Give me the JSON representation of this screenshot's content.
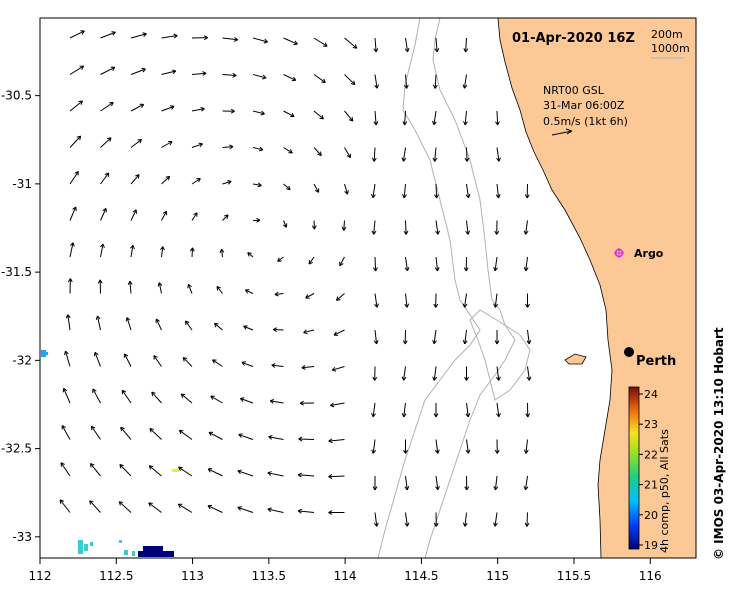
{
  "title": "01-Apr-2020 16Z",
  "depth_legend": [
    "200m",
    "1000m"
  ],
  "velocity_legend": {
    "source": "NRT00 GSL",
    "date": "31-Mar 06:00Z",
    "scale": "0.5m/s (1kt 6h)"
  },
  "colorbar": {
    "label": "4h comp, p50, All Sats",
    "ticks": [
      "19",
      "20",
      "21",
      "22",
      "23",
      "24"
    ]
  },
  "places": [
    {
      "name": "Argo",
      "lon": 115.88,
      "lat": -31.42,
      "kind": "argo"
    },
    {
      "name": "Perth",
      "lon": 115.86,
      "lat": -31.95,
      "kind": "city"
    }
  ],
  "axes": {
    "x_ticks": [
      "112",
      "112.5",
      "113",
      "113.5",
      "114",
      "114.5",
      "115",
      "115.5",
      "116"
    ],
    "y_ticks": [
      "-30.5",
      "-31",
      "-31.5",
      "-32",
      "-32.5",
      "-33"
    ],
    "lon_range": [
      112,
      116.3
    ],
    "lat_range": [
      -33.12,
      -30.06
    ]
  },
  "credit": "© IMOS 03-Apr-2020 13:10 Hobart",
  "colors": {
    "land": "#fbc896",
    "argo": "#e020e0",
    "isobath": "#b0b0b0"
  }
}
